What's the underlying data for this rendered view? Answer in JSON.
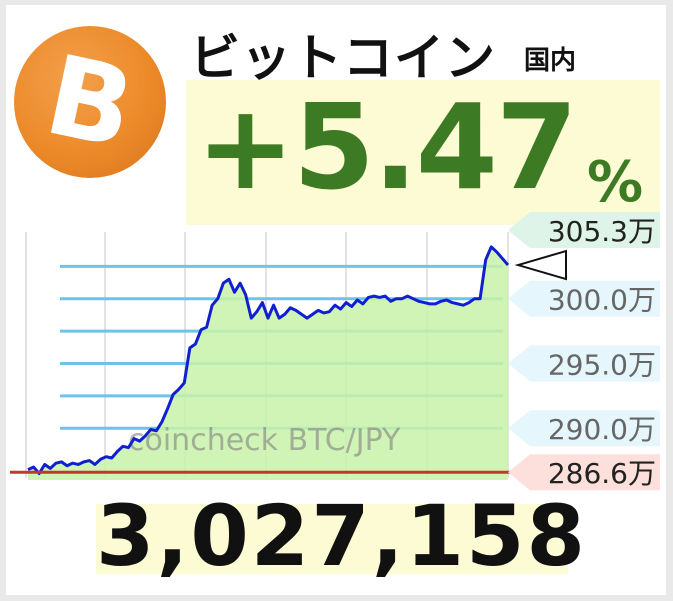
{
  "header": {
    "title": "ビットコイン",
    "subtitle": "国内",
    "logo_icon": "bitcoin-logo-icon"
  },
  "change": {
    "value": "+5.47",
    "unit": "%"
  },
  "price": {
    "value": "3,027,158"
  },
  "colors": {
    "logo": "#ec8a2a",
    "change": "#3d7a24",
    "line": "#1020d0",
    "area": "#c8f2a8",
    "gridline": "#6cc4ec",
    "baseline": "#c0392b",
    "highlight": "#fdfbd3"
  },
  "chart_data": {
    "type": "line",
    "title": "",
    "watermark": "coincheck BTC/JPY",
    "series": [
      {
        "values": [
          2868000,
          2870000,
          2865000,
          2872000,
          2869000,
          2873000,
          2874000,
          2871000,
          2873000,
          2872000,
          2874000,
          2875000,
          2872000,
          2876000,
          2878000,
          2877000,
          2882000,
          2886000,
          2885000,
          2892000,
          2890000,
          2894000,
          2899000,
          2898000,
          2905000,
          2915000,
          2926000,
          2930000,
          2935000,
          2962000,
          2965000,
          2976000,
          2978000,
          2995000,
          3000000,
          3012000,
          3015000,
          3005000,
          3012000,
          3003000,
          2985000,
          2990000,
          2997000,
          2985000,
          2995000,
          2985000,
          2988000,
          2993000,
          2991000,
          2988000,
          2985000,
          2988000,
          2991000,
          2989000,
          2990000,
          2995000,
          2992000,
          2997000,
          2994000,
          2999000,
          2996000,
          3001000,
          3002000,
          3001000,
          3002000,
          2998000,
          3000000,
          3000000,
          3002000,
          3000000,
          2998000,
          2997000,
          2996000,
          2996000,
          2998000,
          2999000,
          2997000,
          2996000,
          2995000,
          2997000,
          3000000,
          3000000,
          3030000,
          3040000,
          3036000,
          3031000,
          3026000
        ]
      }
    ],
    "y_ticks": [
      {
        "value": 2900000,
        "label": "290.0万"
      },
      {
        "value": 2950000,
        "label": "295.0万"
      },
      {
        "value": 3000000,
        "label": "300.0万"
      }
    ],
    "max_label": "305.3万",
    "min_label": "286.6万",
    "y_max": 3053000,
    "y_min": 2866000,
    "ylim": [
      2860000,
      3060000
    ],
    "grid": true
  }
}
